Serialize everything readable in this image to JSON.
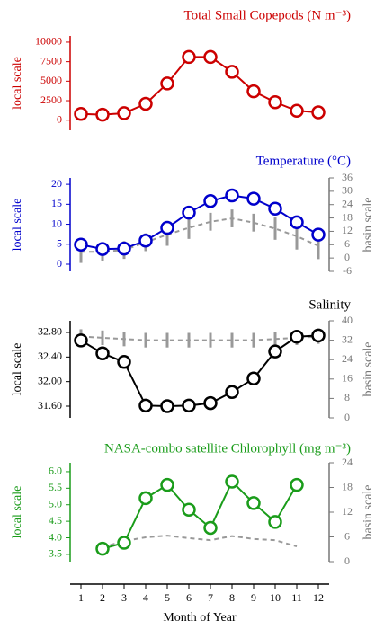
{
  "chart_data": [
    {
      "type": "line",
      "title": "Total Small Copepods (N m⁻³)",
      "ylabel": "local scale",
      "color": "#cc0000",
      "x": [
        1,
        2,
        3,
        4,
        5,
        6,
        7,
        8,
        9,
        10,
        11,
        12
      ],
      "xlim": [
        0.5,
        12.5
      ],
      "ylim": [
        -1300,
        10800
      ],
      "yticks": [
        0,
        2500,
        5000,
        7500,
        10000
      ],
      "series": [
        {
          "color": "#cc0000",
          "values": [
            800,
            700,
            900,
            2100,
            4700,
            8100,
            8100,
            6200,
            3700,
            2300,
            1200,
            1000
          ]
        }
      ]
    },
    {
      "type": "line",
      "title": "Temperature (°C)",
      "ylabel": "local scale",
      "y2label": "basin scale",
      "color": "#0000cc",
      "x": [
        1,
        2,
        3,
        4,
        5,
        6,
        7,
        8,
        9,
        10,
        11,
        12
      ],
      "xlim": [
        0.5,
        12.5
      ],
      "ylim": [
        -1.8,
        21.6
      ],
      "yticks": [
        0,
        5,
        10,
        15,
        20
      ],
      "y2lim": [
        -6,
        36
      ],
      "y2ticks": [
        -6,
        0,
        6,
        12,
        18,
        24,
        30,
        36
      ],
      "series": [
        {
          "color": "#0000cc",
          "values": [
            4.9,
            3.8,
            3.9,
            5.9,
            9.1,
            12.9,
            15.8,
            17.2,
            16.4,
            13.9,
            10.5,
            7.4
          ]
        },
        {
          "color": "#999999",
          "axis": "y2",
          "dash": true,
          "values": [
            2.8,
            2.8,
            3.6,
            7.1,
            10.5,
            13.6,
            16.3,
            17.8,
            15.9,
            13.2,
            9.8,
            5.5
          ],
          "errors": [
            5,
            4,
            4,
            4,
            5,
            5,
            4,
            4,
            4,
            5,
            6,
            6
          ]
        }
      ]
    },
    {
      "type": "line",
      "title": "Salinity",
      "ylabel": "local scale",
      "y2label": "basin scale",
      "color": "#000000",
      "x": [
        1,
        2,
        3,
        4,
        5,
        6,
        7,
        8,
        9,
        10,
        11,
        12
      ],
      "xlim": [
        0.5,
        12.5
      ],
      "ylim": [
        31.41,
        32.99
      ],
      "yticks": [
        {
          "value": 31.6,
          "label": "31.60"
        },
        {
          "value": 32,
          "label": "32.00"
        },
        {
          "value": 32.4,
          "label": "32.40"
        },
        {
          "value": 32.8,
          "label": "32.80"
        }
      ],
      "y2lim": [
        0,
        40
      ],
      "y2ticks": [
        0,
        8,
        16,
        24,
        32,
        40
      ],
      "series": [
        {
          "color": "#000000",
          "values": [
            32.67,
            32.46,
            32.32,
            31.61,
            31.6,
            31.61,
            31.65,
            31.83,
            32.05,
            32.49,
            32.73,
            32.75
          ]
        },
        {
          "color": "#999999",
          "axis": "y2",
          "dash": true,
          "values": [
            33.5,
            33,
            32.5,
            32,
            32,
            32,
            32,
            32,
            32,
            32.5,
            33,
            33.5
          ],
          "errors": [
            3,
            3,
            3,
            3,
            3,
            3,
            3,
            3,
            3,
            3,
            3,
            3
          ]
        }
      ]
    },
    {
      "type": "line",
      "title": "NASA-combo satellite Chlorophyll (mg m⁻³)",
      "ylabel": "local scale",
      "y2label": "basin scale",
      "color": "#1a9c1a",
      "x": [
        1,
        2,
        3,
        4,
        5,
        6,
        7,
        8,
        9,
        10,
        11,
        12
      ],
      "xlim": [
        0.5,
        12.5
      ],
      "xticks": [
        1,
        2,
        3,
        4,
        5,
        6,
        7,
        8,
        9,
        10,
        11,
        12
      ],
      "xlabel": "Month of Year",
      "ylim": [
        3.28,
        6.27
      ],
      "yticks": [
        3.5,
        {
          "value": 4,
          "label": "4.0"
        },
        4.5,
        {
          "value": 5,
          "label": "5.0"
        },
        5.5,
        {
          "value": 6,
          "label": "6.0"
        }
      ],
      "y2lim": [
        0,
        24
      ],
      "y2ticks": [
        0,
        6,
        12,
        18,
        24
      ],
      "series": [
        {
          "color": "#1a9c1a",
          "values": [
            null,
            3.67,
            3.85,
            5.2,
            5.6,
            4.85,
            4.3,
            5.7,
            5.05,
            4.48,
            5.6,
            null
          ]
        },
        {
          "color": "#999999",
          "axis": "y2",
          "dash": true,
          "values": [
            null,
            3.5,
            5,
            5.9,
            6.3,
            5.7,
            5.2,
            6.2,
            5.5,
            5.2,
            3.7,
            null
          ]
        }
      ]
    }
  ]
}
